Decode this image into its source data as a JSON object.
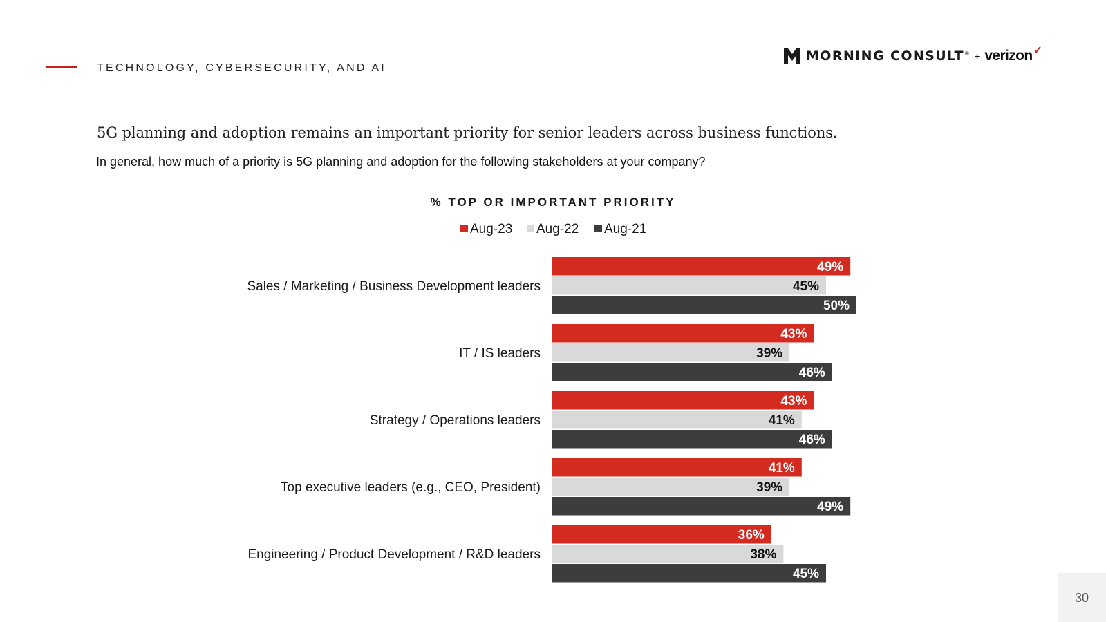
{
  "header": {
    "section_label": "TECHNOLOGY, CYBERSECURITY, AND AI",
    "logo_text": "MORNING CONSULT",
    "logo_registered": "®",
    "logo_plus": "+",
    "partner_text": "verizon",
    "partner_mark": "✓"
  },
  "headline": "5G planning and adoption remains an important priority for senior leaders across business functions.",
  "question": "In general, how much of a priority is 5G planning and adoption for the following stakeholders at your company?",
  "page_number": "30",
  "colors": {
    "Aug-23": "#d42b21",
    "Aug-22": "#d9d9d9",
    "Aug-21": "#3d3d3d"
  },
  "chart_data": {
    "type": "bar",
    "orientation": "horizontal",
    "title": "% TOP OR IMPORTANT PRIORITY",
    "legend_position": "top-center",
    "grid": false,
    "xlim": [
      0,
      100
    ],
    "categories": [
      "Sales / Marketing / Business Development leaders",
      "IT / IS leaders",
      "Strategy / Operations leaders",
      "Top executive leaders (e.g., CEO, President)",
      "Engineering / Product Development / R&D leaders"
    ],
    "series": [
      {
        "name": "Aug-23",
        "values": [
          49,
          43,
          43,
          41,
          36
        ]
      },
      {
        "name": "Aug-22",
        "values": [
          45,
          39,
          41,
          39,
          38
        ]
      },
      {
        "name": "Aug-21",
        "values": [
          50,
          46,
          46,
          49,
          45
        ]
      }
    ],
    "value_suffix": "%"
  }
}
